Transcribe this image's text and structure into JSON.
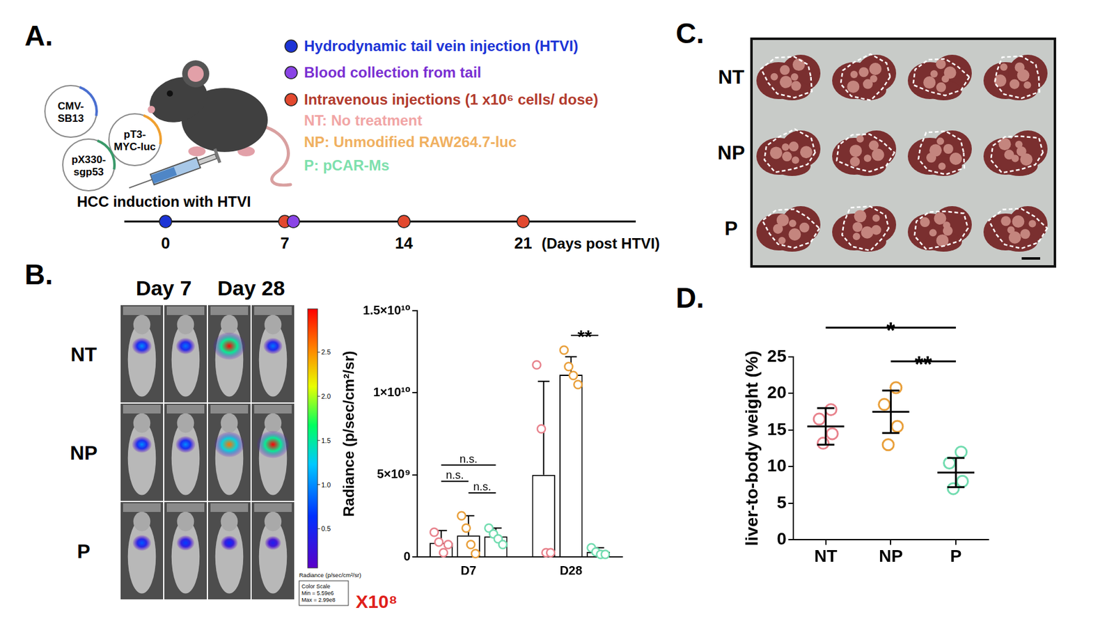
{
  "panel_letters": [
    "A.",
    "B.",
    "C.",
    "D."
  ],
  "panel_a": {
    "plasmids": [
      "CMV-SB13",
      "pT3-MYC-luc",
      "pX330-sgp53"
    ],
    "legend": [
      {
        "text": "Hydrodynamic tail vein injection (HTVI)",
        "color": "#1c34d6",
        "dot": "#1c34d6"
      },
      {
        "text": "Blood collection from tail",
        "color": "#7a2fd2",
        "dot": "#8a44e6"
      },
      {
        "text": "Intravenous injections (1 x10⁶ cells/ dose)",
        "color": "#b23a2c",
        "dot": "#e2492f"
      },
      {
        "text": "NT: No treatment",
        "color": "#f1a5a5"
      },
      {
        "text": "NP: Unmodified RAW264.7-luc",
        "color": "#f0b060"
      },
      {
        "text": "P: pCAR-Ms",
        "color": "#7ee0ad"
      }
    ],
    "timeline": {
      "title": "HCC induction with HTVI",
      "days": [
        0,
        7,
        14,
        21
      ],
      "axis_label": "(Days post HTVI)",
      "events": [
        {
          "day": 0,
          "colors": [
            "#1c34d6"
          ]
        },
        {
          "day": 7,
          "colors": [
            "#e2492f",
            "#8a44e6"
          ]
        },
        {
          "day": 14,
          "colors": [
            "#e2492f"
          ]
        },
        {
          "day": 21,
          "colors": [
            "#e2492f"
          ]
        }
      ]
    }
  },
  "panel_b_images": {
    "columns": [
      "Day 7",
      "Day 28"
    ],
    "rows": [
      {
        "label": "NT",
        "intensity": [
          1.0,
          0.9,
          2.99,
          0.9
        ]
      },
      {
        "label": "NP",
        "intensity": [
          1.0,
          1.0,
          2.6,
          2.99
        ]
      },
      {
        "label": "P",
        "intensity": [
          0.8,
          0.7,
          0.6,
          0.45
        ]
      }
    ],
    "colorbar": {
      "range": [
        0.0559,
        2.99
      ],
      "ticks": [
        0.5,
        {
          "value": 1,
          "label": "1.0"
        },
        1.5,
        {
          "value": 2,
          "label": "2.0"
        },
        2.5
      ],
      "title": "Radiance (p/sec/cm²/sr)",
      "box": [
        "Color Scale",
        "Min = 5.59e6",
        "Max = 2.99e8"
      ],
      "multiplier": "X10⁸"
    }
  },
  "panel_c": {
    "rows": [
      "NT",
      "NP",
      "P"
    ]
  },
  "chart_data": [
    {
      "type": "bar",
      "y_label": "Radiance (p/sec/cm²/sr)",
      "categories": [
        "D7",
        "D28"
      ],
      "series": [
        {
          "name": "NT",
          "color": "#e8838d",
          "values": [
            850000000,
            5000000000
          ],
          "error": [
            750000000,
            5700000000
          ],
          "points": [
            [
              1500000000,
              900000000,
              250000000,
              750000000
            ],
            [
              11700000000,
              7800000000,
              250000000,
              250000000
            ]
          ]
        },
        {
          "name": "NP",
          "color": "#e9a03c",
          "values": [
            1300000000,
            11100000000
          ],
          "error": [
            1200000000,
            1100000000
          ],
          "points": [
            [
              2500000000,
              1750000000,
              750000000,
              200000000
            ],
            [
              12600000000,
              11600000000,
              11050000000,
              10500000000
            ]
          ]
        },
        {
          "name": "P",
          "color": "#72dcb0",
          "values": [
            1250000000,
            300000000
          ],
          "error": [
            500000000,
            250000000
          ],
          "points": [
            [
              1750000000,
              1400000000,
              1100000000,
              750000000
            ],
            [
              550000000,
              300000000,
              150000000,
              150000000
            ]
          ]
        }
      ],
      "ylim": [
        0,
        15000000000
      ],
      "yticks": [
        0,
        {
          "value": 5000000000,
          "label": "5×10⁹"
        },
        {
          "value": 10000000000,
          "label": "1×10¹⁰"
        },
        {
          "value": 15000000000,
          "label": "1.5×10¹⁰"
        }
      ],
      "grid": false,
      "annotations": [
        {
          "text": "n.s.",
          "category": "D7",
          "from": "NT",
          "to": "P",
          "y": 5600000000
        },
        {
          "text": "n.s.",
          "category": "D7",
          "from": "NT",
          "to": "NP",
          "y": 4600000000
        },
        {
          "text": "n.s.",
          "category": "D7",
          "from": "NP",
          "to": "P",
          "y": 3900000000
        },
        {
          "text": "**",
          "category": "D28",
          "from": "NP",
          "to": "P",
          "y": 13500000000
        }
      ]
    },
    {
      "type": "scatter",
      "y_label": "liver-to-body weight (%)",
      "categories": [
        "NT",
        "NP",
        "P"
      ],
      "colors": [
        "#e8838d",
        "#e9a03c",
        "#72dcb0"
      ],
      "values": [
        15.5,
        17.5,
        9.2
      ],
      "error": [
        2.5,
        2.9,
        2.0
      ],
      "points": [
        [
          17.8,
          16.5,
          14.5,
          13.2
        ],
        [
          20.8,
          18.5,
          15.5,
          13.0
        ],
        [
          12.0,
          10.5,
          8.0,
          7.0
        ]
      ],
      "ylim": [
        0,
        25
      ],
      "yticks": [
        0,
        5,
        10,
        15,
        20,
        25
      ],
      "grid": false,
      "annotations": [
        {
          "text": "*",
          "from": "NT",
          "to": "P",
          "y": 29
        },
        {
          "text": "**",
          "from": "NP",
          "to": "P",
          "y": 24.4
        }
      ]
    }
  ]
}
